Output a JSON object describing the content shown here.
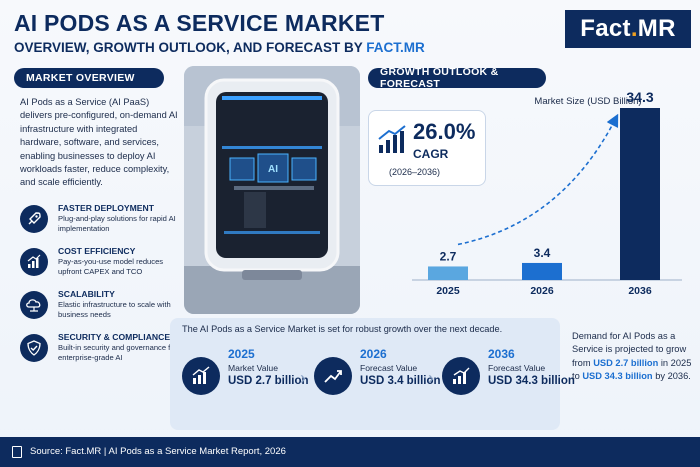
{
  "header": {
    "title": "AI PODS AS A SERVICE MARKET",
    "subtitle_prefix": "OVERVIEW, GROWTH OUTLOOK, AND FORECAST BY ",
    "subtitle_brand": "FACT.MR",
    "logo_main": "Fact",
    "logo_dot": ".",
    "logo_tail": "MR"
  },
  "overview": {
    "heading": "MARKET OVERVIEW",
    "description": "AI Pods as a Service (AI PaaS) delivers pre-configured, on-demand AI infrastructure with integrated hardware, software, and services, enabling businesses to deploy AI workloads faster, reduce complexity, and scale efficiently.",
    "features": [
      {
        "title": "FASTER DEPLOYMENT",
        "desc": "Plug-and-play solutions for rapid AI implementation",
        "icon": "rocket-icon"
      },
      {
        "title": "COST EFFICIENCY",
        "desc": "Pay-as-you-use model reduces upfront CAPEX and TCO",
        "icon": "cost-chart-icon"
      },
      {
        "title": "SCALABILITY",
        "desc": "Elastic infrastructure to scale with business needs",
        "icon": "cloud-network-icon"
      },
      {
        "title": "SECURITY & COMPLIANCE",
        "desc": "Built-in security and governance for enterprise-grade AI",
        "icon": "shield-check-icon"
      }
    ]
  },
  "photo": {
    "screen_text": "AI"
  },
  "growth": {
    "heading": "GROWTH OUTLOOK & FORECAST",
    "cagr_value": "26.0%",
    "cagr_label": "CAGR",
    "cagr_period": "(2026–2036)"
  },
  "chart_data": {
    "type": "bar",
    "title": "Market Size (USD Billion)",
    "categories": [
      "2025",
      "2026",
      "2036"
    ],
    "values": [
      2.7,
      3.4,
      34.3
    ],
    "value_labels": [
      "2.7",
      "3.4",
      "34.3"
    ],
    "colors": [
      "#5aa7e0",
      "#1c6fd0",
      "#0d2b5e"
    ],
    "ylim": [
      0,
      34.3
    ],
    "grid": false,
    "legend": "none"
  },
  "bottom": {
    "lead": "The AI Pods as a Service Market is set for robust growth over the next decade.",
    "stats": [
      {
        "year": "2025",
        "label": "Market Value",
        "value": "USD 2.7 billion"
      },
      {
        "year": "2026",
        "label": "Forecast Value",
        "value": "USD 3.4 billion"
      },
      {
        "year": "2036",
        "label": "Forecast Value",
        "value": "USD 34.3 billion"
      }
    ],
    "summary_a": "Demand for AI Pods as a Service is projected to grow from ",
    "summary_hl1": "USD 2.7 billion",
    "summary_b": " in 2025 to ",
    "summary_hl2": "USD 34.3 billion",
    "summary_c": " by 2036."
  },
  "footer": {
    "source": "Source: Fact.MR | AI Pods as a Service Market Report, 2026"
  }
}
